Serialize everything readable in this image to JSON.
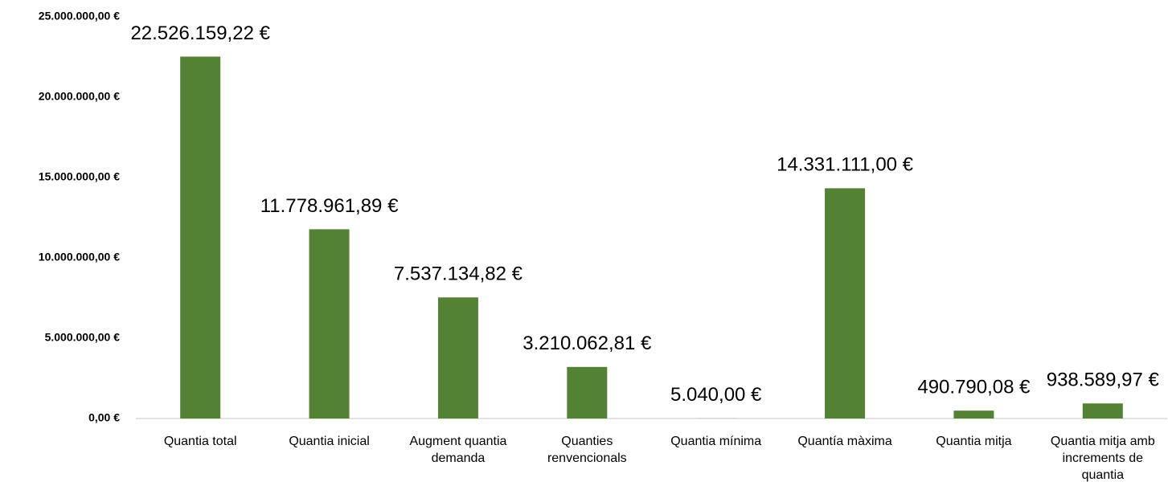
{
  "chart_data": {
    "type": "bar",
    "categories": [
      "Quantia total",
      "Quantia inicial",
      "Augment quantia demanda",
      "Quanties renvencionals",
      "Quantia mínima",
      "Quantía màxima",
      "Quantia mitja",
      "Quantia mitja amb increments de quantia"
    ],
    "values": [
      22526159.22,
      11778961.89,
      7537134.82,
      3210062.81,
      5040,
      14331111,
      490790.08,
      938589.97
    ],
    "value_labels": [
      "22.526.159,22 €",
      "11.778.961,89 €",
      "7.537.134,82 €",
      "3.210.062,81 €",
      "5.040,00 €",
      "14.331.111,00 €",
      "490.790,08 €",
      "938.589,97 €"
    ],
    "color": "#548235",
    "ylim": [
      0,
      25000000
    ],
    "yticks": [
      {
        "value": 0,
        "label": "0,00 €"
      },
      {
        "value": 5000000,
        "label": "5.000.000,00 €"
      },
      {
        "value": 10000000,
        "label": "10.000.000,00 €"
      },
      {
        "value": 15000000,
        "label": "15.000.000,00 €"
      },
      {
        "value": 20000000,
        "label": "20.000.000,00 €"
      },
      {
        "value": 25000000,
        "label": "25.000.000,00 €"
      }
    ],
    "grid": false
  }
}
